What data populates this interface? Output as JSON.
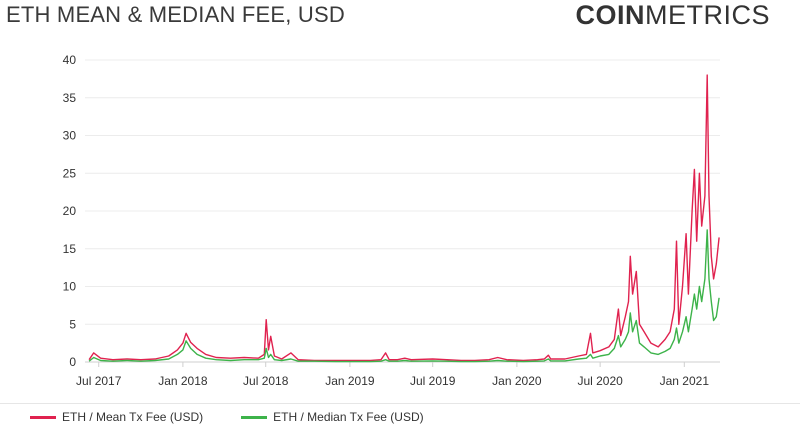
{
  "header": {
    "title": "ETH MEAN & MEDIAN FEE, USD",
    "logo_bold": "COIN",
    "logo_light": "METRICS"
  },
  "colors": {
    "mean": "#e0224f",
    "median": "#3db34a",
    "grid": "#ececec",
    "axis": "#cfcfcf"
  },
  "chart_data": {
    "type": "line",
    "title": "ETH MEAN & MEDIAN FEE, USD",
    "xlabel": "",
    "ylabel": "",
    "ylim": [
      0,
      40
    ],
    "yticks": [
      0,
      5,
      10,
      15,
      20,
      25,
      30,
      35,
      40
    ],
    "xlim": [
      "2017-06-01",
      "2021-03-20"
    ],
    "xticks": [
      {
        "date": "2017-07-01",
        "label": "Jul 2017"
      },
      {
        "date": "2018-01-01",
        "label": "Jan 2018"
      },
      {
        "date": "2018-07-01",
        "label": "Jul 2018"
      },
      {
        "date": "2019-01-01",
        "label": "Jan 2019"
      },
      {
        "date": "2019-07-01",
        "label": "Jul 2019"
      },
      {
        "date": "2020-01-01",
        "label": "Jan 2020"
      },
      {
        "date": "2020-07-01",
        "label": "Jul 2020"
      },
      {
        "date": "2021-01-01",
        "label": "Jan 2021"
      }
    ],
    "legend_position": "bottom-left",
    "grid": true,
    "series": [
      {
        "name": "ETH / Mean Tx Fee (USD)",
        "points": [
          [
            "2017-06-10",
            0.3
          ],
          [
            "2017-06-20",
            1.2
          ],
          [
            "2017-07-05",
            0.5
          ],
          [
            "2017-08-01",
            0.3
          ],
          [
            "2017-09-01",
            0.4
          ],
          [
            "2017-10-01",
            0.3
          ],
          [
            "2017-11-01",
            0.4
          ],
          [
            "2017-12-01",
            0.8
          ],
          [
            "2017-12-20",
            1.6
          ],
          [
            "2018-01-01",
            2.5
          ],
          [
            "2018-01-08",
            3.8
          ],
          [
            "2018-01-18",
            2.6
          ],
          [
            "2018-02-01",
            1.8
          ],
          [
            "2018-02-20",
            1.0
          ],
          [
            "2018-03-15",
            0.6
          ],
          [
            "2018-04-15",
            0.5
          ],
          [
            "2018-05-15",
            0.6
          ],
          [
            "2018-06-15",
            0.5
          ],
          [
            "2018-06-28",
            1.0
          ],
          [
            "2018-07-02",
            5.6
          ],
          [
            "2018-07-07",
            1.6
          ],
          [
            "2018-07-12",
            3.4
          ],
          [
            "2018-07-20",
            0.8
          ],
          [
            "2018-08-05",
            0.4
          ],
          [
            "2018-08-25",
            1.2
          ],
          [
            "2018-09-10",
            0.3
          ],
          [
            "2018-10-15",
            0.2
          ],
          [
            "2018-12-01",
            0.2
          ],
          [
            "2019-01-15",
            0.2
          ],
          [
            "2019-02-15",
            0.2
          ],
          [
            "2019-03-10",
            0.3
          ],
          [
            "2019-03-20",
            1.2
          ],
          [
            "2019-03-28",
            0.3
          ],
          [
            "2019-04-15",
            0.3
          ],
          [
            "2019-05-01",
            0.5
          ],
          [
            "2019-05-15",
            0.3
          ],
          [
            "2019-07-01",
            0.4
          ],
          [
            "2019-08-01",
            0.3
          ],
          [
            "2019-09-01",
            0.2
          ],
          [
            "2019-10-01",
            0.2
          ],
          [
            "2019-11-01",
            0.3
          ],
          [
            "2019-11-20",
            0.6
          ],
          [
            "2019-12-10",
            0.3
          ],
          [
            "2020-01-15",
            0.2
          ],
          [
            "2020-02-15",
            0.3
          ],
          [
            "2020-03-01",
            0.4
          ],
          [
            "2020-03-10",
            0.9
          ],
          [
            "2020-03-15",
            0.4
          ],
          [
            "2020-04-15",
            0.4
          ],
          [
            "2020-05-15",
            0.8
          ],
          [
            "2020-06-01",
            1.0
          ],
          [
            "2020-06-10",
            3.8
          ],
          [
            "2020-06-15",
            1.2
          ],
          [
            "2020-07-01",
            1.5
          ],
          [
            "2020-07-20",
            2.0
          ],
          [
            "2020-08-01",
            3.0
          ],
          [
            "2020-08-10",
            7.0
          ],
          [
            "2020-08-15",
            3.5
          ],
          [
            "2020-08-25",
            6.0
          ],
          [
            "2020-09-01",
            8.0
          ],
          [
            "2020-09-05",
            14.0
          ],
          [
            "2020-09-10",
            9.0
          ],
          [
            "2020-09-18",
            12.0
          ],
          [
            "2020-09-25",
            5.0
          ],
          [
            "2020-10-05",
            4.0
          ],
          [
            "2020-10-20",
            2.5
          ],
          [
            "2020-11-05",
            2.0
          ],
          [
            "2020-11-20",
            3.0
          ],
          [
            "2020-12-01",
            4.0
          ],
          [
            "2020-12-10",
            7.0
          ],
          [
            "2020-12-15",
            16.0
          ],
          [
            "2020-12-20",
            5.0
          ],
          [
            "2020-12-28",
            10.0
          ],
          [
            "2021-01-05",
            17.0
          ],
          [
            "2021-01-10",
            9.0
          ],
          [
            "2021-01-18",
            20.0
          ],
          [
            "2021-01-23",
            25.5
          ],
          [
            "2021-01-28",
            16.0
          ],
          [
            "2021-02-03",
            25.0
          ],
          [
            "2021-02-08",
            18.0
          ],
          [
            "2021-02-15",
            22.0
          ],
          [
            "2021-02-20",
            38.0
          ],
          [
            "2021-02-24",
            22.0
          ],
          [
            "2021-03-01",
            14.0
          ],
          [
            "2021-03-06",
            11.0
          ],
          [
            "2021-03-12",
            13.0
          ],
          [
            "2021-03-18",
            16.5
          ]
        ]
      },
      {
        "name": "ETH / Median Tx Fee (USD)",
        "points": [
          [
            "2017-06-10",
            0.1
          ],
          [
            "2017-06-20",
            0.6
          ],
          [
            "2017-07-05",
            0.2
          ],
          [
            "2017-08-01",
            0.1
          ],
          [
            "2017-09-01",
            0.2
          ],
          [
            "2017-10-01",
            0.1
          ],
          [
            "2017-11-01",
            0.2
          ],
          [
            "2017-12-01",
            0.4
          ],
          [
            "2017-12-20",
            1.0
          ],
          [
            "2018-01-01",
            1.6
          ],
          [
            "2018-01-08",
            2.8
          ],
          [
            "2018-01-18",
            1.8
          ],
          [
            "2018-02-01",
            1.0
          ],
          [
            "2018-02-20",
            0.5
          ],
          [
            "2018-03-15",
            0.3
          ],
          [
            "2018-04-15",
            0.2
          ],
          [
            "2018-05-15",
            0.3
          ],
          [
            "2018-06-15",
            0.3
          ],
          [
            "2018-06-28",
            0.5
          ],
          [
            "2018-07-02",
            1.8
          ],
          [
            "2018-07-07",
            0.6
          ],
          [
            "2018-07-12",
            1.0
          ],
          [
            "2018-07-20",
            0.3
          ],
          [
            "2018-08-05",
            0.2
          ],
          [
            "2018-08-25",
            0.4
          ],
          [
            "2018-09-10",
            0.1
          ],
          [
            "2018-10-15",
            0.1
          ],
          [
            "2018-12-01",
            0.05
          ],
          [
            "2019-01-15",
            0.05
          ],
          [
            "2019-02-15",
            0.05
          ],
          [
            "2019-03-10",
            0.1
          ],
          [
            "2019-03-20",
            0.3
          ],
          [
            "2019-03-28",
            0.1
          ],
          [
            "2019-04-15",
            0.1
          ],
          [
            "2019-05-01",
            0.2
          ],
          [
            "2019-05-15",
            0.1
          ],
          [
            "2019-07-01",
            0.15
          ],
          [
            "2019-08-01",
            0.1
          ],
          [
            "2019-09-01",
            0.05
          ],
          [
            "2019-10-01",
            0.05
          ],
          [
            "2019-11-01",
            0.1
          ],
          [
            "2019-11-20",
            0.2
          ],
          [
            "2019-12-10",
            0.1
          ],
          [
            "2020-01-15",
            0.05
          ],
          [
            "2020-02-15",
            0.1
          ],
          [
            "2020-03-01",
            0.15
          ],
          [
            "2020-03-10",
            0.4
          ],
          [
            "2020-03-15",
            0.15
          ],
          [
            "2020-04-15",
            0.15
          ],
          [
            "2020-05-15",
            0.4
          ],
          [
            "2020-06-01",
            0.5
          ],
          [
            "2020-06-10",
            1.0
          ],
          [
            "2020-06-15",
            0.5
          ],
          [
            "2020-07-01",
            0.8
          ],
          [
            "2020-07-20",
            1.0
          ],
          [
            "2020-08-01",
            1.8
          ],
          [
            "2020-08-10",
            3.5
          ],
          [
            "2020-08-15",
            2.0
          ],
          [
            "2020-08-25",
            3.0
          ],
          [
            "2020-09-01",
            4.0
          ],
          [
            "2020-09-05",
            6.5
          ],
          [
            "2020-09-10",
            4.0
          ],
          [
            "2020-09-18",
            5.5
          ],
          [
            "2020-09-25",
            2.5
          ],
          [
            "2020-10-05",
            2.0
          ],
          [
            "2020-10-20",
            1.2
          ],
          [
            "2020-11-05",
            1.0
          ],
          [
            "2020-11-20",
            1.4
          ],
          [
            "2020-12-01",
            1.8
          ],
          [
            "2020-12-10",
            3.0
          ],
          [
            "2020-12-15",
            4.5
          ],
          [
            "2020-12-20",
            2.5
          ],
          [
            "2020-12-28",
            4.0
          ],
          [
            "2021-01-05",
            6.0
          ],
          [
            "2021-01-10",
            4.0
          ],
          [
            "2021-01-18",
            7.0
          ],
          [
            "2021-01-23",
            9.0
          ],
          [
            "2021-01-28",
            7.0
          ],
          [
            "2021-02-03",
            10.0
          ],
          [
            "2021-02-08",
            8.0
          ],
          [
            "2021-02-15",
            11.0
          ],
          [
            "2021-02-20",
            17.5
          ],
          [
            "2021-02-24",
            11.0
          ],
          [
            "2021-03-01",
            8.0
          ],
          [
            "2021-03-06",
            5.5
          ],
          [
            "2021-03-12",
            6.0
          ],
          [
            "2021-03-18",
            8.5
          ]
        ]
      }
    ]
  },
  "legend": {
    "mean_label": "ETH / Mean Tx Fee (USD)",
    "median_label": "ETH / Median Tx Fee (USD)"
  }
}
